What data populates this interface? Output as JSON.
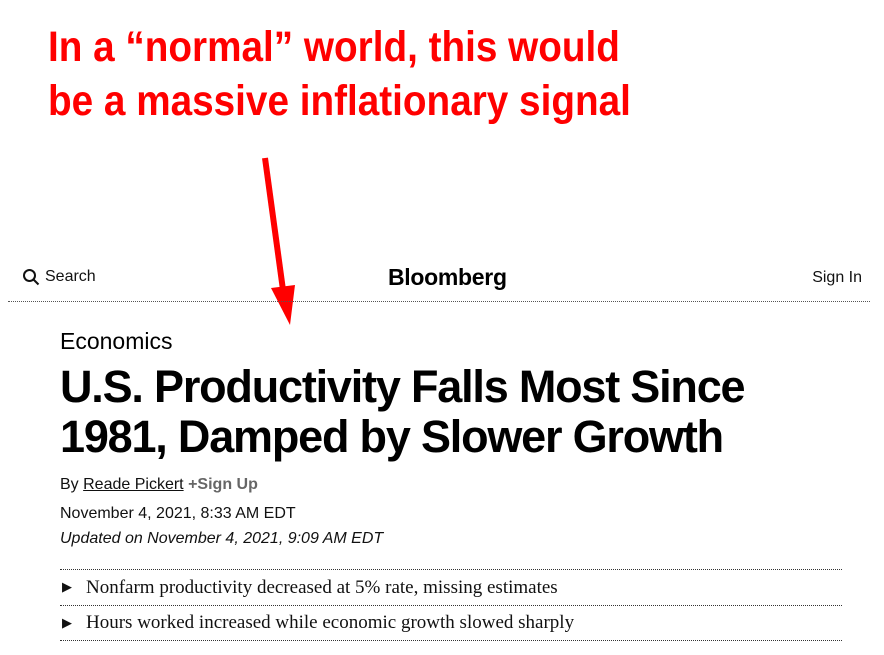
{
  "annotation": {
    "line1": "In a “normal” world, this would",
    "line2": "be a massive inflationary signal",
    "color": "#ff0000"
  },
  "header": {
    "search_label": "Search",
    "brand": "Bloomberg",
    "signin_label": "Sign In"
  },
  "article": {
    "category": "Economics",
    "headline_line1": "U.S. Productivity Falls Most Since",
    "headline_line2": "1981, Damped by Slower Growth",
    "byline_prefix": "By",
    "author": "Reade Pickert",
    "signup": "+Sign Up",
    "published": "November 4, 2021, 8:33 AM EDT",
    "updated": "Updated on November 4, 2021, 9:09 AM EDT",
    "bullets": [
      "Nonfarm productivity decreased at 5% rate, missing estimates",
      "Hours worked increased while economic growth slowed sharply"
    ]
  }
}
